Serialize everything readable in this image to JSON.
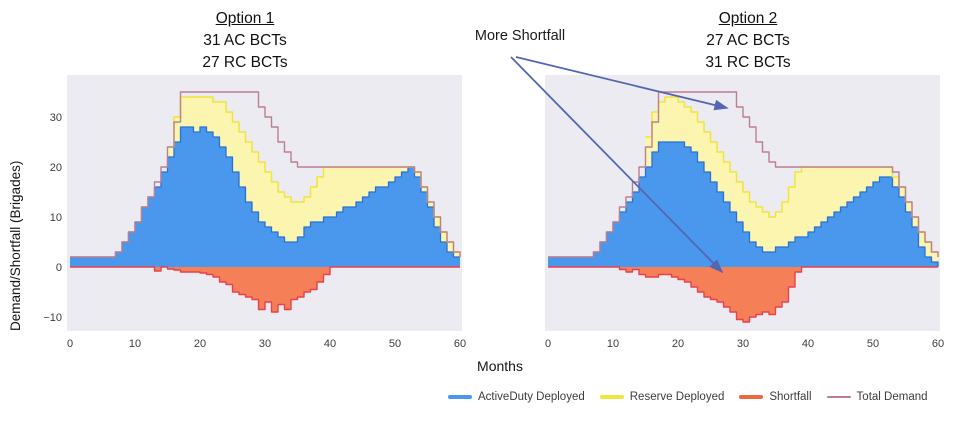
{
  "figure": {
    "ylabel": "Demand/Shortfall (Brigades)",
    "xlabel": "Months",
    "annotation_label": "More Shortfall"
  },
  "legend": [
    {
      "label": "ActiveDuty Deployed",
      "color": "#4a97ee",
      "thickness": 4
    },
    {
      "label": "Reserve Deployed",
      "color": "#f0e53c",
      "thickness": 4
    },
    {
      "label": "Shortfall",
      "color": "#f0663f",
      "thickness": 4
    },
    {
      "label": "Total Demand",
      "color": "#bb8090",
      "thickness": 2
    }
  ],
  "colors": {
    "active_fill": "#4a97ee",
    "active_stroke": "#2a72cf",
    "reserve_fill": "#fbf5b0",
    "reserve_stroke": "#f0e53c",
    "shortfall_fill": "#f57f56",
    "shortfall_stroke": "#e8414b",
    "demand_stroke": "#bb8090",
    "plot_bg": "#ecebf1",
    "arrow": "#5565b2"
  },
  "chart_data": [
    {
      "type": "area",
      "title": "Option 1",
      "subtitle1": "31 AC BCTs",
      "subtitle2": "27 RC BCTs",
      "xlabel": "Months",
      "ylabel": "Demand/Shortfall (Brigades)",
      "xlim": [
        0,
        60
      ],
      "ylim": [
        -12.8,
        38.4
      ],
      "x_ticks": [
        0,
        10,
        20,
        30,
        40,
        50,
        60
      ],
      "y_ticks": [
        -10,
        0,
        10,
        20,
        30
      ],
      "show_y_tick_labels": true,
      "series": {
        "active_duty": [
          2,
          2,
          2,
          2,
          2,
          2,
          2,
          3,
          5,
          7,
          9,
          12,
          14,
          16,
          19,
          22,
          25,
          28,
          28,
          27,
          28,
          27,
          26,
          24,
          22,
          19,
          16,
          13,
          11,
          9,
          8,
          7,
          6,
          5,
          5,
          6,
          8,
          9,
          9,
          10,
          10,
          11,
          12,
          12,
          13,
          14,
          15,
          16,
          16,
          17,
          18,
          19,
          20,
          18,
          15,
          12,
          8,
          5,
          3,
          2,
          2
        ],
        "reserve": [
          0,
          0,
          0,
          0,
          0,
          0,
          0,
          0,
          0,
          0,
          0,
          0,
          0,
          0,
          0,
          2,
          5,
          6,
          6,
          7,
          6,
          7,
          7,
          9,
          9,
          10,
          11,
          12,
          12,
          12,
          11,
          10,
          9,
          9,
          8,
          7,
          6,
          7,
          9,
          10,
          10,
          9,
          8,
          8,
          7,
          6,
          5,
          4,
          4,
          3,
          2,
          1,
          0,
          1,
          1,
          1,
          2,
          2,
          2,
          1,
          0
        ],
        "shortfall": [
          0,
          0,
          0,
          0,
          0,
          0,
          0,
          0,
          0,
          0,
          0,
          0,
          0,
          -0.8,
          0,
          -0.4,
          -0.6,
          -1,
          -1,
          -1,
          -1.2,
          -1.5,
          -2,
          -3,
          -3.5,
          -5,
          -5.5,
          -6,
          -6.5,
          -8.5,
          -7,
          -9,
          -7.5,
          -8.5,
          -6.5,
          -6,
          -5,
          -4.5,
          -3,
          -1.5,
          0,
          0,
          0,
          0,
          0,
          0,
          0,
          0,
          0,
          0,
          0,
          0,
          0,
          0,
          0,
          0,
          0,
          0,
          0,
          0,
          0
        ],
        "total_demand": [
          2,
          2,
          2,
          2,
          2,
          2,
          2,
          3,
          5,
          7,
          9,
          12,
          14,
          17,
          20,
          24,
          29,
          35,
          35,
          35,
          35,
          35,
          35,
          35,
          35,
          35,
          35,
          35,
          35,
          32,
          30,
          28,
          25,
          23,
          21,
          20,
          20,
          20,
          20,
          20,
          20,
          20,
          20,
          20,
          20,
          20,
          20,
          20,
          20,
          20,
          20,
          20,
          20,
          19,
          16,
          13,
          10,
          7,
          5,
          3,
          2
        ]
      }
    },
    {
      "type": "area",
      "title": "Option 2",
      "subtitle1": "27 AC BCTs",
      "subtitle2": "31 RC BCTs",
      "xlabel": "Months",
      "ylabel": "Demand/Shortfall (Brigades)",
      "xlim": [
        0,
        60
      ],
      "ylim": [
        -12.8,
        38.4
      ],
      "x_ticks": [
        0,
        10,
        20,
        30,
        40,
        50,
        60
      ],
      "y_ticks": [
        -10,
        0,
        10,
        20,
        30
      ],
      "show_y_tick_labels": false,
      "series": {
        "active_duty": [
          2,
          2,
          2,
          2,
          2,
          2,
          2,
          3,
          5,
          7,
          9,
          11,
          13,
          15,
          18,
          20,
          23,
          25,
          25,
          25,
          25,
          24,
          23,
          21,
          19,
          17,
          15,
          13,
          11,
          9,
          7,
          5,
          4,
          3,
          3,
          4,
          4,
          5,
          6,
          6,
          7,
          8,
          9,
          10,
          11,
          12,
          13,
          14,
          15,
          16,
          17,
          18,
          18,
          16,
          14,
          11,
          8,
          4,
          2,
          1,
          0
        ],
        "reserve": [
          0,
          0,
          0,
          0,
          0,
          0,
          0,
          0,
          0,
          0,
          0,
          0,
          0,
          0,
          0,
          6,
          8,
          8,
          9,
          9,
          8,
          8,
          8,
          8,
          8,
          8,
          8,
          8,
          8,
          8,
          8,
          8,
          8,
          8,
          7,
          7,
          9,
          11,
          13,
          14,
          13,
          12,
          11,
          10,
          9,
          8,
          7,
          6,
          5,
          4,
          3,
          2,
          2,
          2,
          2,
          2,
          2,
          3,
          3,
          2,
          2
        ],
        "shortfall": [
          0,
          0,
          0,
          0,
          0,
          0,
          0,
          0,
          0,
          0,
          0,
          -0.5,
          -1,
          -0.5,
          -1.5,
          -2,
          -2,
          -1.5,
          -1.5,
          -2,
          -2.5,
          -3,
          -4,
          -5,
          -6,
          -6.5,
          -7,
          -8,
          -9,
          -10.5,
          -11,
          -10,
          -9.5,
          -9,
          -9.5,
          -8,
          -7,
          -4,
          -1,
          0,
          0,
          0,
          0,
          0,
          0,
          0,
          0,
          0,
          0,
          0,
          0,
          0,
          0,
          0,
          0,
          0,
          0,
          0,
          0,
          0,
          0
        ],
        "total_demand": [
          2,
          2,
          2,
          2,
          2,
          2,
          2,
          3,
          5,
          7,
          9,
          12,
          14,
          17,
          20,
          24,
          29,
          35,
          35,
          35,
          35,
          35,
          35,
          35,
          35,
          35,
          35,
          35,
          35,
          32,
          30,
          28,
          25,
          23,
          21,
          20,
          20,
          20,
          20,
          20,
          20,
          20,
          20,
          20,
          20,
          20,
          20,
          20,
          20,
          20,
          20,
          20,
          20,
          19,
          16,
          13,
          10,
          7,
          5,
          3,
          2
        ]
      }
    }
  ]
}
